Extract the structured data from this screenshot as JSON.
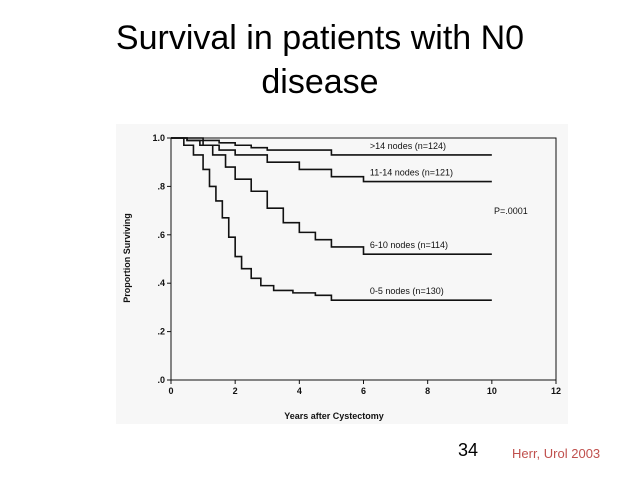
{
  "slide": {
    "title_line1": "Survival in patients with N0",
    "title_line2": "disease",
    "page_number": "34",
    "citation": "Herr, Urol 2003",
    "citation_color": "#c0504d"
  },
  "chart_data": {
    "type": "line",
    "step": true,
    "xlabel": "Years after Cystectomy",
    "ylabel": "Proportion Surviving",
    "xlim": [
      0,
      12
    ],
    "ylim": [
      0,
      1.0
    ],
    "xticks": [
      "0",
      "2",
      "4",
      "6",
      "8",
      "10",
      "12"
    ],
    "yticks": [
      ".0",
      ".2",
      ".4",
      ".6",
      ".8",
      "1.0"
    ],
    "grid": false,
    "annotation": "P=.0001",
    "series": [
      {
        "name": ">14 nodes (n=124)",
        "x": [
          0,
          0.5,
          1.0,
          1.5,
          2.0,
          2.5,
          3.0,
          4.0,
          5.0,
          10.0
        ],
        "y": [
          1.0,
          1.0,
          0.99,
          0.98,
          0.97,
          0.96,
          0.95,
          0.95,
          0.93,
          0.93
        ]
      },
      {
        "name": "11-14 nodes (n=121)",
        "x": [
          0,
          0.5,
          1.0,
          1.5,
          2.0,
          3.0,
          4.0,
          5.0,
          6.0,
          10.0
        ],
        "y": [
          1.0,
          0.99,
          0.97,
          0.95,
          0.93,
          0.9,
          0.87,
          0.84,
          0.82,
          0.82
        ]
      },
      {
        "name": "6-10 nodes (n=114)",
        "x": [
          0,
          0.5,
          0.9,
          1.3,
          1.7,
          2.0,
          2.5,
          3.0,
          3.5,
          4.0,
          4.5,
          5.0,
          6.0,
          10.0
        ],
        "y": [
          1.0,
          0.99,
          0.97,
          0.93,
          0.88,
          0.83,
          0.78,
          0.71,
          0.65,
          0.61,
          0.58,
          0.55,
          0.52,
          0.52
        ]
      },
      {
        "name": "0-5 nodes (n=130)",
        "x": [
          0,
          0.4,
          0.7,
          1.0,
          1.2,
          1.4,
          1.6,
          1.8,
          2.0,
          2.2,
          2.5,
          2.8,
          3.2,
          3.8,
          4.5,
          5.0,
          10.0
        ],
        "y": [
          1.0,
          0.97,
          0.93,
          0.87,
          0.8,
          0.74,
          0.67,
          0.59,
          0.51,
          0.46,
          0.42,
          0.39,
          0.37,
          0.36,
          0.35,
          0.33,
          0.33
        ]
      }
    ]
  }
}
